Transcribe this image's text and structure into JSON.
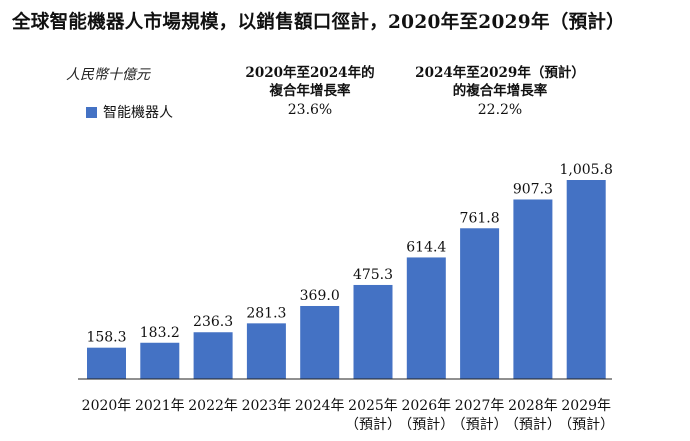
{
  "chart_data": {
    "type": "bar",
    "title": "全球智能機器人市場規模，以銷售額口徑計，2020年至2029年（預計）",
    "unit_label": "人民幣十億元",
    "legend": [
      {
        "name": "智能機器人",
        "color": "#4472C4"
      }
    ],
    "cagr": [
      {
        "header": "2020年至2024年的\n複合年增長率",
        "value": "23.6%"
      },
      {
        "header": "2024年至2029年（預計）\n的複合年增長率",
        "value": "22.2%"
      }
    ],
    "categories": [
      [
        "2020年"
      ],
      [
        "2021年"
      ],
      [
        "2022年"
      ],
      [
        "2023年"
      ],
      [
        "2024年"
      ],
      [
        "2025年",
        "（預計）"
      ],
      [
        "2026年",
        "（預計）"
      ],
      [
        "2027年",
        "（預計）"
      ],
      [
        "2028年",
        "（預計）"
      ],
      [
        "2029年",
        "（預計）"
      ]
    ],
    "series": [
      {
        "name": "智能機器人",
        "values": [
          158.3,
          183.2,
          236.3,
          281.3,
          369.0,
          475.3,
          614.4,
          761.8,
          907.3,
          1005.8
        ]
      }
    ],
    "value_labels": [
      "158.3",
      "183.2",
      "236.3",
      "281.3",
      "369.0",
      "475.3",
      "614.4",
      "761.8",
      "907.3",
      "1,005.8"
    ],
    "ylim": [
      0,
      1005.8
    ],
    "grid": false,
    "legend_position": "top-left",
    "bar_color": "#4472C4"
  }
}
